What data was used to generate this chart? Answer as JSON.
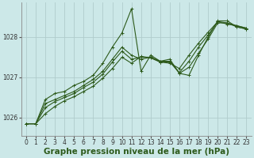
{
  "background_color": "#cce8e8",
  "grid_color": "#b0cccc",
  "line_color": "#2d5a1b",
  "xlabel": "Graphe pression niveau de la mer (hPa)",
  "ylim": [
    1025.55,
    1028.85
  ],
  "xlim": [
    -0.5,
    23.5
  ],
  "yticks": [
    1026,
    1027,
    1028
  ],
  "xticks": [
    0,
    1,
    2,
    3,
    4,
    5,
    6,
    7,
    8,
    9,
    10,
    11,
    12,
    13,
    14,
    15,
    16,
    17,
    18,
    19,
    20,
    21,
    22,
    23
  ],
  "series": [
    [
      1025.85,
      1025.85,
      1026.45,
      1026.6,
      1026.65,
      1026.8,
      1026.9,
      1027.05,
      1027.35,
      1027.75,
      1028.1,
      1028.7,
      1027.15,
      1027.55,
      1027.4,
      1027.45,
      1027.1,
      1027.05,
      1027.55,
      1028.0,
      1028.4,
      1028.4,
      1028.25,
      1028.2
    ],
    [
      1025.85,
      1025.85,
      1026.35,
      1026.45,
      1026.55,
      1026.65,
      1026.8,
      1026.95,
      1027.15,
      1027.45,
      1027.75,
      1027.55,
      1027.45,
      1027.5,
      1027.4,
      1027.4,
      1027.1,
      1027.25,
      1027.6,
      1027.95,
      1028.35,
      1028.35,
      1028.25,
      1028.2
    ],
    [
      1025.85,
      1025.85,
      1026.25,
      1026.4,
      1026.5,
      1026.6,
      1026.75,
      1026.88,
      1027.08,
      1027.38,
      1027.65,
      1027.45,
      1027.5,
      1027.5,
      1027.38,
      1027.38,
      1027.12,
      1027.4,
      1027.75,
      1028.05,
      1028.38,
      1028.35,
      1028.28,
      1028.22
    ],
    [
      1025.85,
      1025.85,
      1026.1,
      1026.28,
      1026.42,
      1026.52,
      1026.65,
      1026.78,
      1026.98,
      1027.22,
      1027.5,
      1027.35,
      1027.52,
      1027.48,
      1027.38,
      1027.35,
      1027.22,
      1027.55,
      1027.85,
      1028.12,
      1028.38,
      1028.32,
      1028.28,
      1028.22
    ]
  ],
  "marker": "+",
  "markersize": 3.5,
  "linewidth": 0.8,
  "xlabel_fontsize": 7.5,
  "tick_fontsize": 5.5
}
